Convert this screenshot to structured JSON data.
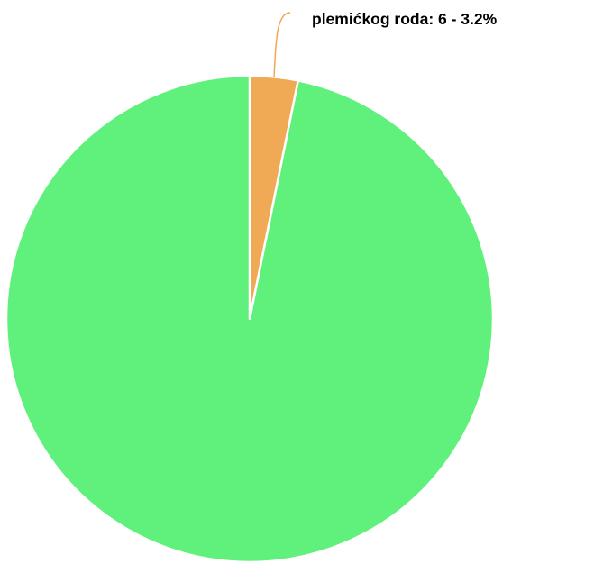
{
  "chart_data": {
    "type": "pie",
    "slices": [
      {
        "label": "plemićkog roda",
        "value": 6,
        "percent": "3.2%",
        "color": "#f0a954",
        "show_label": true
      },
      {
        "label": "",
        "value": 182,
        "percent": "",
        "color": "#60f07c",
        "show_label": false
      }
    ],
    "slice_border_color": "#ffffff",
    "leader_color": "#f0a954",
    "label_text_color": "#000000",
    "start_angle_deg": 0,
    "direction": "clockwise"
  }
}
